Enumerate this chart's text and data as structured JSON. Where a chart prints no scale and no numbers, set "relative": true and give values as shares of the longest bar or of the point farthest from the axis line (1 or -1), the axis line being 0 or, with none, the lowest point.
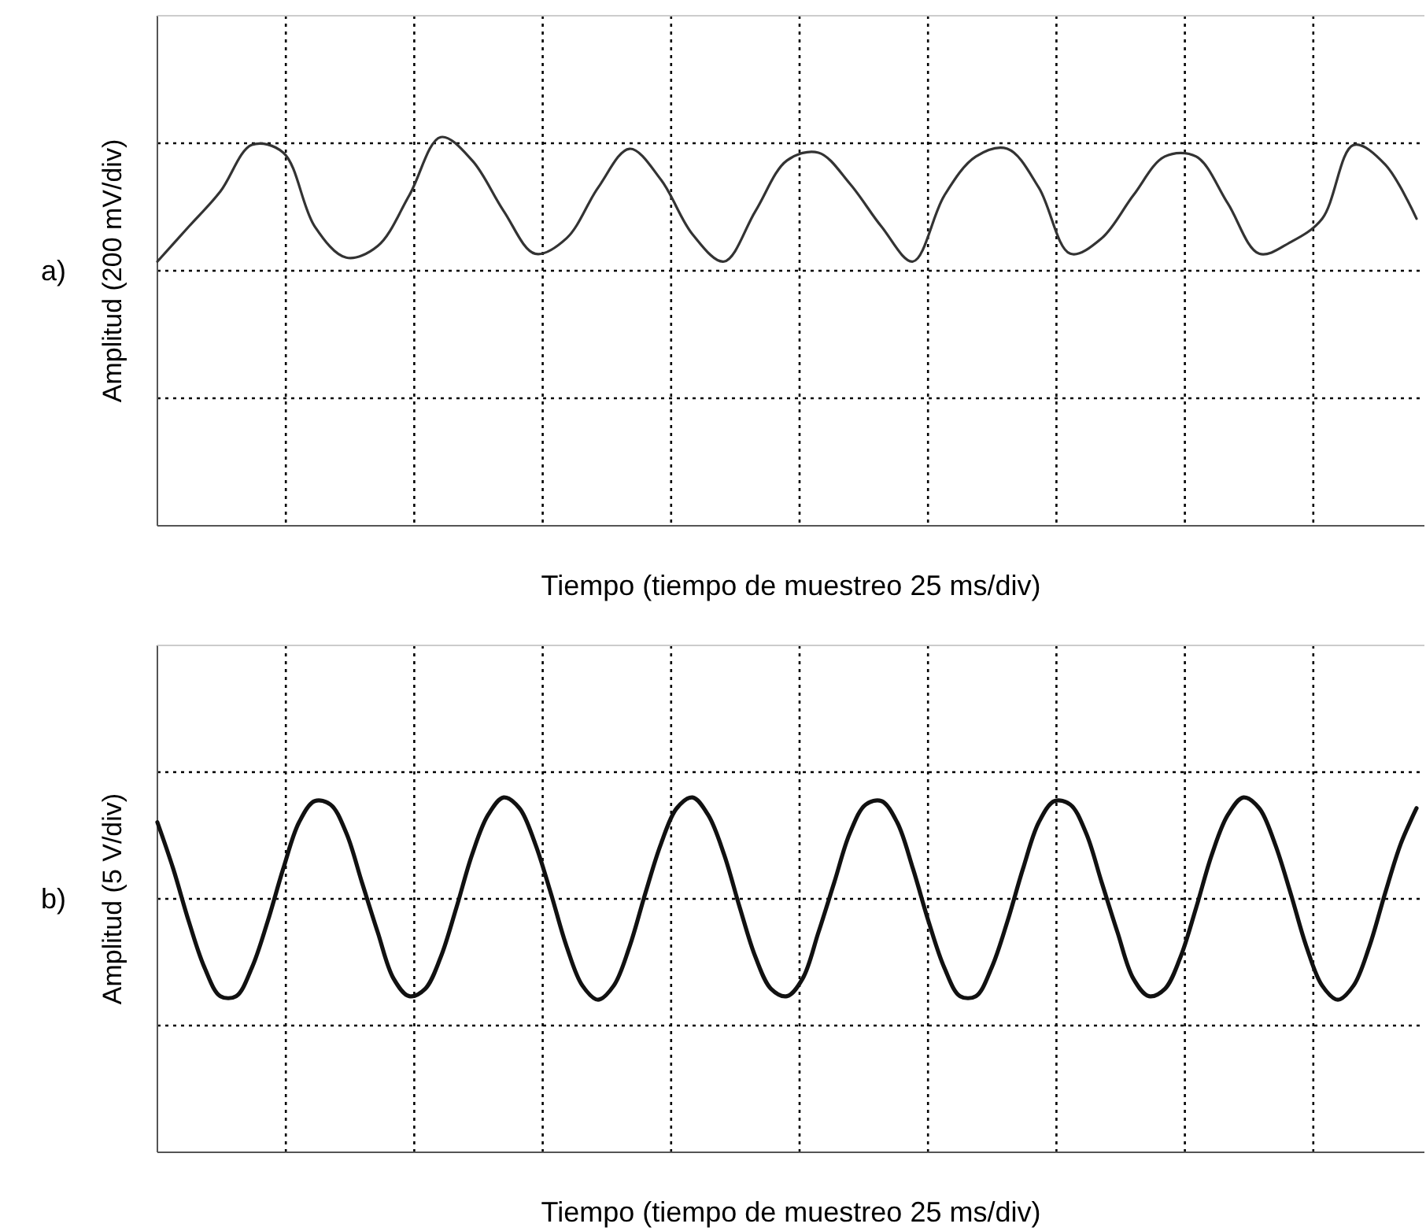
{
  "chart_data": [
    {
      "type": "line",
      "title": "a)",
      "xlabel": "Tiempo (tiempo de muestreo 25 ms/div)",
      "ylabel": "Amplitud (200 mV/div)",
      "relative": true,
      "grid": true,
      "marker": "none",
      "line_style": "solid",
      "categories": [
        null,
        null,
        null,
        null,
        null,
        null,
        null,
        null,
        null,
        null,
        null,
        null,
        null,
        null,
        null,
        null,
        null,
        null,
        null,
        null,
        null,
        null,
        null,
        null,
        null,
        null,
        null,
        null,
        null,
        null,
        null,
        null,
        null,
        null,
        null,
        null,
        null,
        null,
        null,
        null,
        null
      ],
      "series": [
        {
          "color": "#333333",
          "values": [
            0.68,
            0.77,
            0.86,
            0.98,
            0.96,
            0.77,
            0.69,
            0.72,
            0.85,
            1,
            0.94,
            0.81,
            0.7,
            0.74,
            0.87,
            0.97,
            0.89,
            0.75,
            0.68,
            0.81,
            0.94,
            0.96,
            0.88,
            0.77,
            0.68,
            0.85,
            0.95,
            0.97,
            0.87,
            0.7,
            0.74,
            0.85,
            0.95,
            0.95,
            0.83,
            0.7,
            0.73,
            0.79,
            0.98,
            0.93,
            0.79
          ]
        }
      ]
    },
    {
      "type": "line",
      "title": "b)",
      "xlabel": "Tiempo (tiempo de muestreo 25 ms/div)",
      "ylabel": "Amplitud (5 V/div)",
      "relative": true,
      "grid": true,
      "marker": "none",
      "line_style": "solid",
      "categories": [
        null,
        null,
        null,
        null,
        null,
        null,
        null,
        null,
        null,
        null,
        null,
        null,
        null,
        null,
        null,
        null,
        null,
        null,
        null,
        null,
        null,
        null,
        null,
        null,
        null,
        null,
        null,
        null,
        null,
        null,
        null,
        null,
        null,
        null,
        null,
        null,
        null,
        null,
        null,
        null,
        null,
        null,
        null,
        null,
        null,
        null,
        null,
        null,
        null,
        null,
        null,
        null,
        null,
        null,
        null,
        null,
        null,
        null,
        null,
        null,
        null,
        null,
        null,
        null,
        null,
        null,
        null,
        null,
        null,
        null,
        null,
        null,
        null,
        null,
        null,
        null,
        null,
        null,
        null,
        null,
        null
      ],
      "series": [
        {
          "color": "#111111",
          "values": [
            0.93,
            0.8,
            0.65,
            0.52,
            0.44,
            0.44,
            0.52,
            0.65,
            0.8,
            0.93,
            0.99,
            0.98,
            0.9,
            0.76,
            0.62,
            0.49,
            0.44,
            0.46,
            0.55,
            0.69,
            0.84,
            0.95,
            1.0,
            0.97,
            0.87,
            0.73,
            0.58,
            0.47,
            0.43,
            0.47,
            0.58,
            0.73,
            0.87,
            0.97,
            1.0,
            0.95,
            0.84,
            0.69,
            0.55,
            0.46,
            0.44,
            0.49,
            0.62,
            0.76,
            0.9,
            0.98,
            0.99,
            0.93,
            0.8,
            0.65,
            0.52,
            0.44,
            0.44,
            0.52,
            0.65,
            0.8,
            0.93,
            0.99,
            0.98,
            0.9,
            0.76,
            0.62,
            0.49,
            0.44,
            0.46,
            0.55,
            0.69,
            0.84,
            0.95,
            1.0,
            0.97,
            0.87,
            0.73,
            0.58,
            0.47,
            0.43,
            0.47,
            0.58,
            0.73,
            0.87,
            0.97
          ]
        }
      ]
    }
  ]
}
